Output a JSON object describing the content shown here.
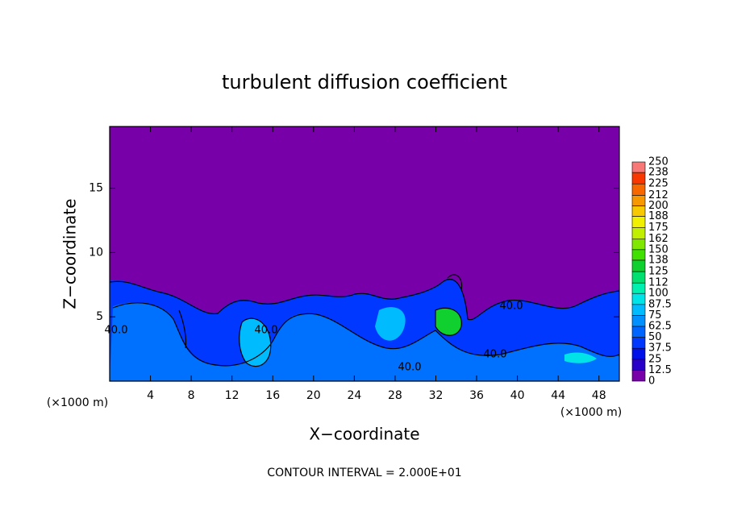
{
  "chart_data": {
    "type": "contour",
    "title": "turbulent diffusion coefficient",
    "xlabel": "X−coordinate",
    "ylabel": "Z−coordinate",
    "x_unit": "(×1000 m)",
    "contour_interval": "CONTOUR INTERVAL = 2.000E+01",
    "contour_labels": [
      "40.0",
      "40.0",
      "40.0",
      "40.0",
      "40.0"
    ],
    "xlim": [
      0,
      50
    ],
    "xticks": [
      4,
      8,
      12,
      16,
      20,
      24,
      28,
      32,
      36,
      40,
      44,
      48
    ],
    "ylim": [
      0,
      19.8
    ],
    "yticks": [
      5,
      10,
      15
    ],
    "colorbar": {
      "levels": [
        0,
        12.5,
        25,
        37.5,
        50,
        62.5,
        75,
        87.5,
        100,
        112,
        125,
        138,
        150,
        162,
        175,
        188,
        200,
        212,
        225,
        238,
        250
      ],
      "colors": [
        "#7800a8",
        "#2800c8",
        "#0010e8",
        "#0038ff",
        "#0064ff",
        "#0090ff",
        "#00bcff",
        "#00e4e8",
        "#00f0b0",
        "#00e070",
        "#10d030",
        "#40e000",
        "#80e800",
        "#c0f000",
        "#f0f000",
        "#f8c800",
        "#f89800",
        "#f86800",
        "#f83800",
        "#f87878"
      ]
    }
  }
}
